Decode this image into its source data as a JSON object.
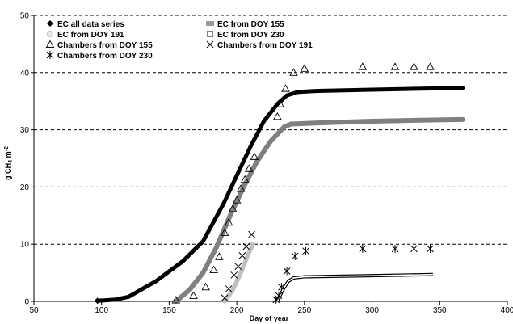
{
  "chart_data": {
    "type": "line",
    "xlabel": "Day of year",
    "ylabel": "g CH4 m-2",
    "ylabel_parts": {
      "main": "g CH",
      "sub": "4",
      "mid": " m",
      "sup": "-2"
    },
    "xlim": [
      50,
      400
    ],
    "ylim": [
      0,
      50
    ],
    "xticks": [
      "50",
      "100",
      "150",
      "200",
      "250",
      "300",
      "350",
      "400"
    ],
    "yticks": [
      "0",
      "10",
      "20",
      "30",
      "40",
      "50"
    ],
    "grid": "horizontal dashed",
    "legend_position": "top-left",
    "colors": {
      "black": "#000000",
      "darkgray": "#808080",
      "lightgray": "#c0c0c0",
      "axis": "#000000"
    },
    "series": [
      {
        "name": "EC all data series",
        "kind": "line",
        "color": "#000000",
        "points": [
          [
            97,
            0.1
          ],
          [
            110,
            0.3
          ],
          [
            120,
            0.8
          ],
          [
            140,
            3.5
          ],
          [
            160,
            7
          ],
          [
            175,
            10.5
          ],
          [
            190,
            17
          ],
          [
            200,
            22
          ],
          [
            210,
            27
          ],
          [
            220,
            31.5
          ],
          [
            230,
            34.5
          ],
          [
            237,
            36
          ],
          [
            245,
            36.6
          ],
          [
            260,
            36.8
          ],
          [
            300,
            37
          ],
          [
            340,
            37.2
          ],
          [
            367,
            37.3
          ]
        ]
      },
      {
        "name": "EC from DOY 155",
        "kind": "line",
        "color": "#808080",
        "points": [
          [
            155,
            0
          ],
          [
            165,
            2
          ],
          [
            175,
            5
          ],
          [
            185,
            9.5
          ],
          [
            195,
            15
          ],
          [
            205,
            20
          ],
          [
            215,
            24.5
          ],
          [
            225,
            28
          ],
          [
            235,
            30.5
          ],
          [
            240,
            31
          ],
          [
            260,
            31.2
          ],
          [
            300,
            31.5
          ],
          [
            340,
            31.7
          ],
          [
            367,
            31.8
          ]
        ]
      },
      {
        "name": "EC from DOY 191",
        "kind": "line",
        "color": "#c0c0c0",
        "points": [
          [
            191,
            0
          ],
          [
            197,
            2
          ],
          [
            203,
            5
          ],
          [
            208,
            8
          ],
          [
            212,
            10
          ]
        ]
      },
      {
        "name": "EC from DOY 230",
        "kind": "line",
        "color": "#000000",
        "points": [
          [
            230,
            0
          ],
          [
            234,
            2
          ],
          [
            238,
            3.5
          ],
          [
            242,
            4.1
          ],
          [
            250,
            4.3
          ],
          [
            300,
            4.5
          ],
          [
            345,
            4.7
          ]
        ]
      },
      {
        "name": "Chambers from DOY 155",
        "kind": "marker",
        "marker": "triangle",
        "points": [
          [
            155,
            0.2
          ],
          [
            168,
            1
          ],
          [
            177,
            2.5
          ],
          [
            183,
            5.5
          ],
          [
            187,
            7.8
          ],
          [
            191,
            12
          ],
          [
            194,
            13.8
          ],
          [
            197,
            16.2
          ],
          [
            200,
            17.7
          ],
          [
            203,
            19.7
          ],
          [
            206,
            21.3
          ],
          [
            209,
            23.2
          ],
          [
            213,
            25.3
          ],
          [
            230,
            32.3
          ],
          [
            232,
            34.5
          ],
          [
            236,
            37.2
          ],
          [
            242,
            40
          ],
          [
            250,
            40.7
          ],
          [
            293,
            41
          ],
          [
            317,
            41
          ],
          [
            331,
            41
          ],
          [
            343,
            41
          ]
        ]
      },
      {
        "name": "Chambers from DOY 191",
        "kind": "marker",
        "marker": "x",
        "points": [
          [
            191,
            0.6
          ],
          [
            194,
            2.2
          ],
          [
            198,
            4.6
          ],
          [
            201,
            6.1
          ],
          [
            204,
            8
          ],
          [
            207,
            9.6
          ],
          [
            211,
            11.7
          ]
        ]
      },
      {
        "name": "Chambers from DOY 230",
        "kind": "marker",
        "marker": "asterisk",
        "points": [
          [
            229,
            0.3
          ],
          [
            231,
            1
          ],
          [
            233,
            2.5
          ],
          [
            237,
            5.3
          ],
          [
            243,
            7.9
          ],
          [
            251,
            8.8
          ],
          [
            293,
            9.2
          ],
          [
            317,
            9.2
          ],
          [
            331,
            9.2
          ],
          [
            343,
            9.2
          ]
        ]
      }
    ]
  },
  "legend": [
    {
      "label": "EC all data series",
      "symbol": "diamond"
    },
    {
      "label": "EC from DOY 155",
      "symbol": "gray-square"
    },
    {
      "label": "EC from DOY 191",
      "symbol": "circle"
    },
    {
      "label": "EC from DOY 230",
      "symbol": "dotted-square"
    },
    {
      "label": "Chambers from DOY 155",
      "symbol": "triangle"
    },
    {
      "label": "Chambers from DOY 191",
      "symbol": "x"
    },
    {
      "label": "Chambers from DOY 230",
      "symbol": "asterisk"
    }
  ]
}
